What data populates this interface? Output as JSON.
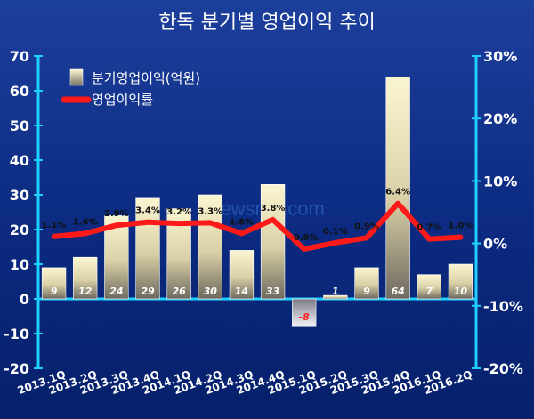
{
  "chart_data": {
    "type": "bar",
    "title": "한독 분기별 영업이익 추이",
    "categories": [
      "2013.1Q",
      "2013.2Q",
      "2013.3Q",
      "2013.4Q",
      "2014.1Q",
      "2014.2Q",
      "2014.3Q",
      "2014.4Q",
      "2015.1Q",
      "2015.2Q",
      "2015.3Q",
      "2015.4Q",
      "2016.1Q",
      "2016.2Q"
    ],
    "series": [
      {
        "name": "분기영업이익(억원)",
        "type": "bar",
        "axis": "left",
        "values": [
          9,
          12,
          24,
          29,
          26,
          30,
          14,
          33,
          -8,
          1,
          9,
          64,
          7,
          10
        ],
        "labels": [
          "9",
          "12",
          "24",
          "29",
          "26",
          "30",
          "14",
          "33",
          "-8",
          "1",
          "9",
          "64",
          "7",
          "10"
        ]
      },
      {
        "name": "영업이익률",
        "type": "line",
        "axis": "right",
        "values": [
          1.1,
          1.6,
          2.9,
          3.4,
          3.2,
          3.3,
          1.6,
          3.8,
          -0.9,
          0.1,
          0.9,
          6.4,
          0.7,
          1.0
        ],
        "labels": [
          "1.1%",
          "1.6%",
          "2.9%",
          "3.4%",
          "3.2%",
          "3.3%",
          "1.6%",
          "3.8%",
          "-0.9%",
          "0.1%",
          "0.9%",
          "6.4%",
          "0.7%",
          "1.0%"
        ]
      }
    ],
    "y_left": {
      "ylim": [
        -20,
        70
      ],
      "ticks": [
        "70",
        "60",
        "50",
        "40",
        "30",
        "20",
        "10",
        "0",
        "-10",
        "-20"
      ]
    },
    "y_right": {
      "ylim": [
        -20,
        30
      ],
      "ticks": [
        "30%",
        "20%",
        "10%",
        "0%",
        "-10%",
        "-20%"
      ]
    },
    "legend_position": "top-left",
    "grid": false
  },
  "watermark": "newsmp.com",
  "colors": {
    "background": "#0b2a80",
    "bar": "#f7f0c8",
    "bar_negative": "#e8e8ee",
    "line": "#ff1a1a",
    "axis": "#1fd0ff",
    "negative_label": "#ff2020"
  }
}
